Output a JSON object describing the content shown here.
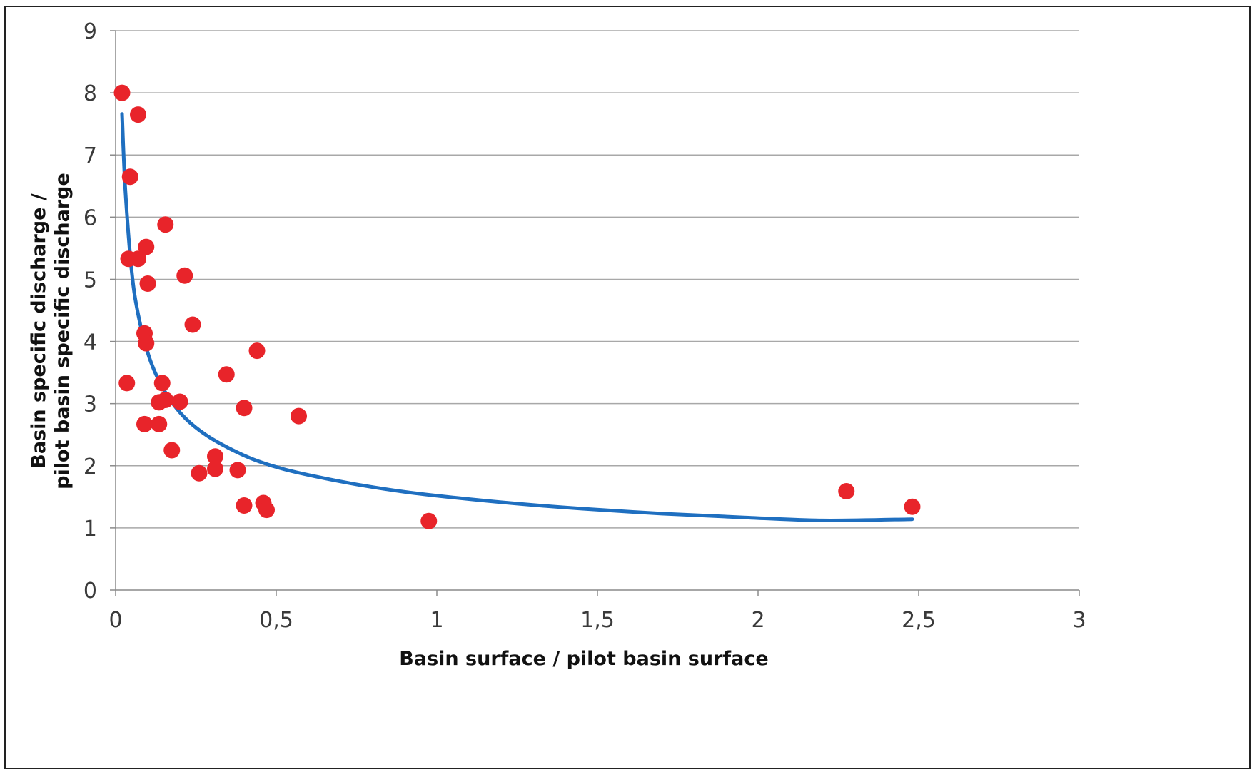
{
  "chart_data": {
    "type": "scatter",
    "title": "",
    "xlabel": "Basin surface / pilot basin surface",
    "ylabel_lines": [
      "Basin specific discharge /",
      "pilot basin specific discharge"
    ],
    "xlim": [
      0,
      3
    ],
    "ylim": [
      0,
      9
    ],
    "x_ticks": [
      0,
      0.5,
      1,
      1.5,
      2,
      2.5,
      3
    ],
    "x_tick_labels": [
      "0",
      "0,5",
      "1",
      "1,5",
      "2",
      "2,5",
      "3"
    ],
    "y_ticks": [
      0,
      1,
      2,
      3,
      4,
      5,
      6,
      7,
      8,
      9
    ],
    "y_tick_labels": [
      "0",
      "1",
      "2",
      "3",
      "4",
      "5",
      "6",
      "7",
      "8",
      "9"
    ],
    "grid": "horizontal",
    "series": [
      {
        "type": "scatter",
        "color": "#e8242a",
        "points": [
          [
            0.02,
            8.0
          ],
          [
            0.07,
            7.65
          ],
          [
            0.045,
            6.65
          ],
          [
            0.155,
            5.88
          ],
          [
            0.095,
            5.52
          ],
          [
            0.04,
            5.33
          ],
          [
            0.07,
            5.33
          ],
          [
            0.215,
            5.06
          ],
          [
            0.1,
            4.93
          ],
          [
            0.24,
            4.27
          ],
          [
            0.09,
            4.13
          ],
          [
            0.095,
            3.97
          ],
          [
            0.44,
            3.85
          ],
          [
            0.345,
            3.47
          ],
          [
            0.035,
            3.33
          ],
          [
            0.145,
            3.33
          ],
          [
            0.155,
            3.06
          ],
          [
            0.135,
            3.02
          ],
          [
            0.2,
            3.03
          ],
          [
            0.4,
            2.93
          ],
          [
            0.57,
            2.8
          ],
          [
            0.09,
            2.67
          ],
          [
            0.135,
            2.67
          ],
          [
            0.175,
            2.25
          ],
          [
            0.31,
            2.15
          ],
          [
            0.31,
            1.95
          ],
          [
            0.26,
            1.88
          ],
          [
            0.38,
            1.93
          ],
          [
            0.4,
            1.36
          ],
          [
            0.46,
            1.4
          ],
          [
            0.47,
            1.29
          ],
          [
            0.975,
            1.11
          ],
          [
            2.275,
            1.59
          ],
          [
            2.48,
            1.34
          ]
        ]
      },
      {
        "type": "line",
        "color": "#1f6fc0",
        "x": [
          0.02,
          0.03,
          0.05,
          0.07,
          0.1,
          0.13,
          0.17,
          0.22,
          0.28,
          0.35,
          0.43,
          0.52,
          0.62,
          0.75,
          0.9,
          1.05,
          1.25,
          1.45,
          1.7,
          1.95,
          2.2,
          2.48
        ],
        "y": [
          7.66,
          6.46,
          5.13,
          4.44,
          3.82,
          3.42,
          3.06,
          2.75,
          2.5,
          2.29,
          2.1,
          1.95,
          1.83,
          1.7,
          1.58,
          1.49,
          1.39,
          1.31,
          1.23,
          1.17,
          1.12,
          1.14
        ]
      }
    ]
  }
}
